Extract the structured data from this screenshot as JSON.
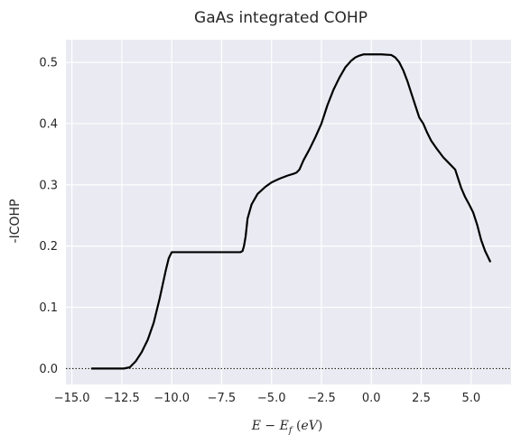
{
  "chart_data": {
    "type": "line",
    "title": "GaAs integrated COHP",
    "xlabel_parts": [
      "E",
      " − ",
      "E",
      "f",
      " (",
      "eV",
      ")"
    ],
    "ylabel": "-ICOHP",
    "xlim": [
      -15.3,
      7.0
    ],
    "ylim": [
      -0.026,
      0.537
    ],
    "xticks": [
      "−15.0",
      "−12.5",
      "−10.0",
      "−7.5",
      "−5.0",
      "−2.5",
      "0.0",
      "2.5",
      "5.0"
    ],
    "xtick_values": [
      -15,
      -12.5,
      -10,
      -7.5,
      -5,
      -2.5,
      0,
      2.5,
      5
    ],
    "yticks": [
      "0.0",
      "0.1",
      "0.2",
      "0.3",
      "0.4",
      "0.5"
    ],
    "ytick_values": [
      0,
      0.1,
      0.2,
      0.3,
      0.4,
      0.5
    ],
    "grid": true,
    "colors": {
      "background": "#eaeaf2",
      "grid": "#ffffff",
      "line": "#000000",
      "zero_line": "#000000"
    },
    "zero_line": {
      "y": 0,
      "style": "dotted"
    },
    "series": [
      {
        "x": [
          -14.0,
          -13.0,
          -12.4,
          -12.1,
          -11.8,
          -11.5,
          -11.2,
          -10.9,
          -10.6,
          -10.3,
          -10.15,
          -10.0,
          -9.0,
          -8.0,
          -7.0,
          -6.55,
          -6.45,
          -6.38,
          -6.3,
          -6.2,
          -6.0,
          -5.7,
          -5.3,
          -5.0,
          -4.6,
          -4.2,
          -3.9,
          -3.75,
          -3.6,
          -3.4,
          -3.1,
          -2.8,
          -2.5,
          -2.2,
          -1.9,
          -1.6,
          -1.3,
          -1.0,
          -0.8,
          -0.6,
          -0.4,
          -0.2,
          0.0,
          0.5,
          1.0,
          1.2,
          1.4,
          1.6,
          1.8,
          2.0,
          2.2,
          2.4,
          2.6,
          2.8,
          3.0,
          3.3,
          3.6,
          3.9,
          4.2,
          4.35,
          4.5,
          4.7,
          4.9,
          5.1,
          5.3,
          5.5,
          5.7,
          5.95
        ],
        "y": [
          0.0,
          0.0,
          0.0,
          0.002,
          0.012,
          0.027,
          0.047,
          0.075,
          0.115,
          0.16,
          0.18,
          0.19,
          0.19,
          0.19,
          0.19,
          0.19,
          0.192,
          0.2,
          0.215,
          0.245,
          0.268,
          0.285,
          0.297,
          0.304,
          0.31,
          0.315,
          0.318,
          0.32,
          0.325,
          0.34,
          0.358,
          0.378,
          0.4,
          0.43,
          0.455,
          0.475,
          0.492,
          0.503,
          0.508,
          0.511,
          0.513,
          0.513,
          0.513,
          0.513,
          0.512,
          0.508,
          0.5,
          0.487,
          0.47,
          0.45,
          0.43,
          0.41,
          0.4,
          0.385,
          0.372,
          0.358,
          0.345,
          0.335,
          0.325,
          0.31,
          0.295,
          0.28,
          0.268,
          0.255,
          0.235,
          0.21,
          0.192,
          0.175
        ]
      }
    ]
  }
}
